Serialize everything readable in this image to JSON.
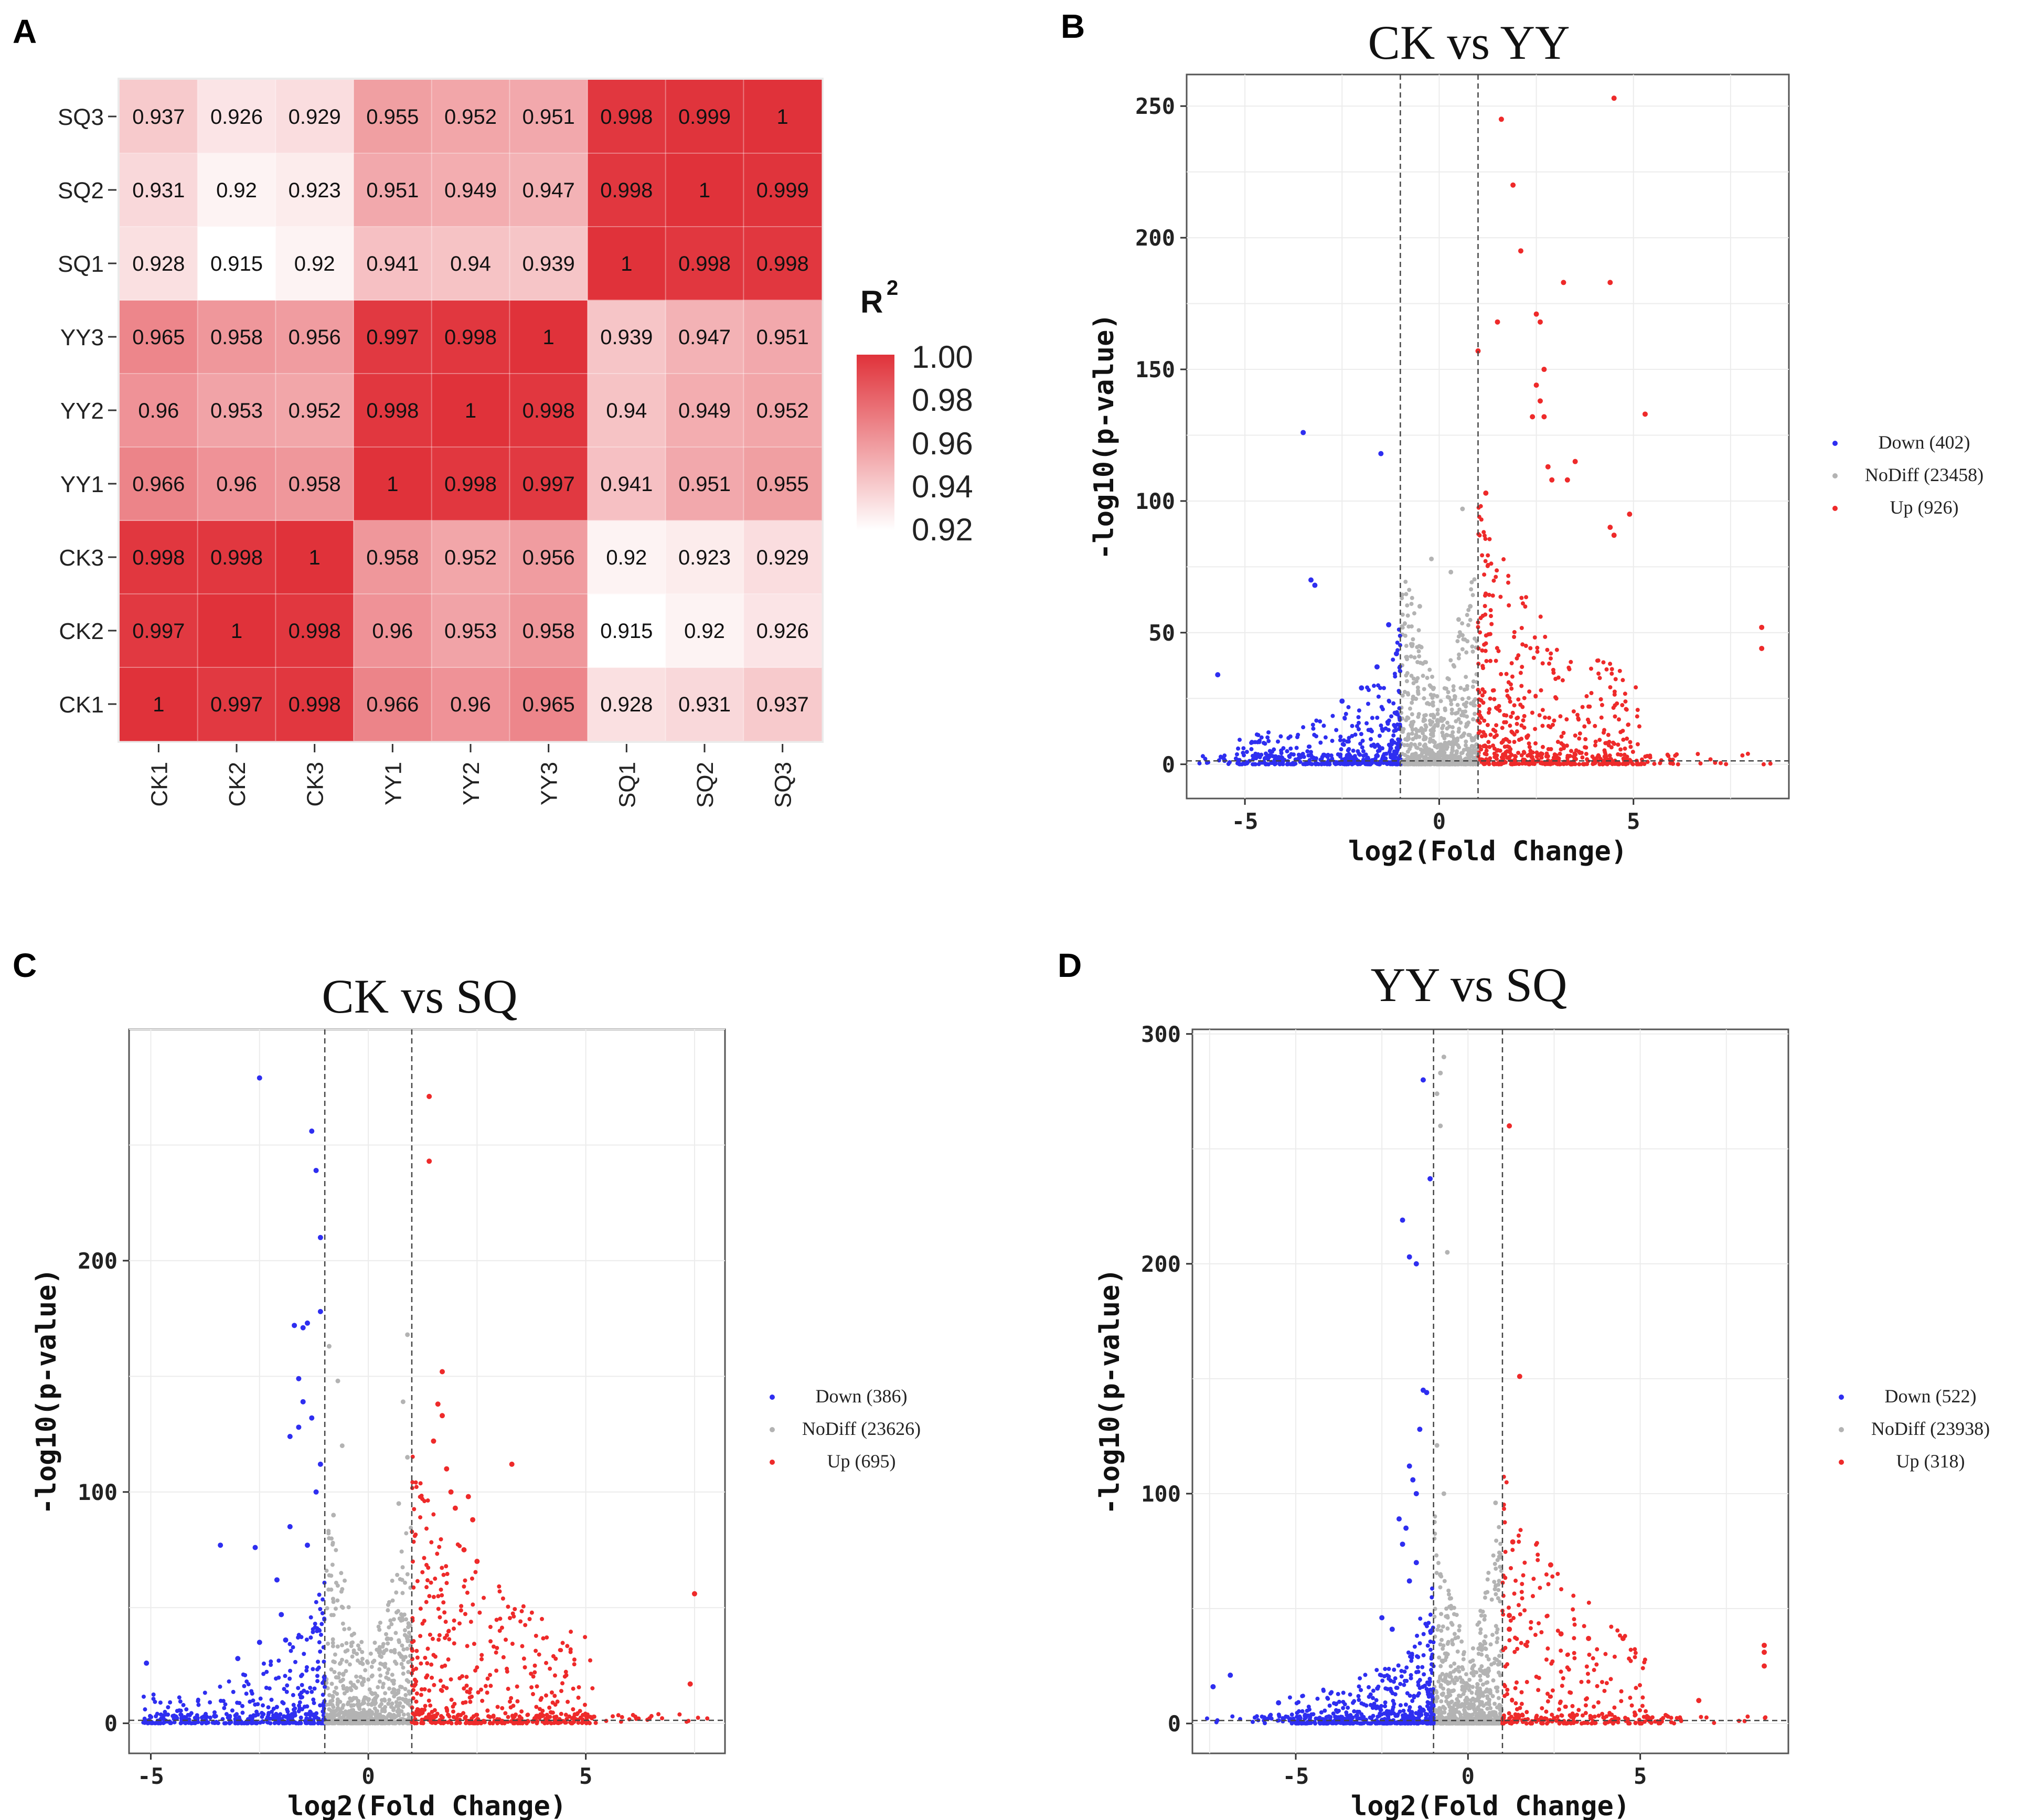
{
  "panels": [
    {
      "id": "A",
      "letter": "A"
    },
    {
      "id": "B",
      "letter": "B"
    },
    {
      "id": "C",
      "letter": "C"
    },
    {
      "id": "D",
      "letter": "D"
    }
  ],
  "chart_data": [
    {
      "panel": "A",
      "type": "heatmap",
      "title": "",
      "rows": [
        "CK1",
        "CK2",
        "CK3",
        "YY1",
        "YY2",
        "YY3",
        "SQ1",
        "SQ2",
        "SQ3"
      ],
      "columns": [
        "CK1",
        "CK2",
        "CK3",
        "YY1",
        "YY2",
        "YY3",
        "SQ1",
        "SQ2",
        "SQ3"
      ],
      "values": [
        [
          "1",
          "0.997",
          "0.998",
          "0.966",
          "0.96",
          "0.965",
          "0.928",
          "0.931",
          "0.937"
        ],
        [
          "0.997",
          "1",
          "0.998",
          "0.96",
          "0.953",
          "0.958",
          "0.915",
          "0.92",
          "0.926"
        ],
        [
          "0.998",
          "0.998",
          "1",
          "0.958",
          "0.952",
          "0.956",
          "0.92",
          "0.923",
          "0.929"
        ],
        [
          "0.966",
          "0.96",
          "0.958",
          "1",
          "0.998",
          "0.997",
          "0.941",
          "0.951",
          "0.955"
        ],
        [
          "0.96",
          "0.953",
          "0.952",
          "0.998",
          "1",
          "0.998",
          "0.94",
          "0.949",
          "0.952"
        ],
        [
          "0.965",
          "0.958",
          "0.956",
          "0.997",
          "0.998",
          "1",
          "0.939",
          "0.947",
          "0.951"
        ],
        [
          "0.928",
          "0.915",
          "0.92",
          "0.941",
          "0.94",
          "0.939",
          "1",
          "0.998",
          "0.998"
        ],
        [
          "0.931",
          "0.92",
          "0.923",
          "0.951",
          "0.949",
          "0.947",
          "0.998",
          "1",
          "0.999"
        ],
        [
          "0.937",
          "0.926",
          "0.929",
          "0.955",
          "0.952",
          "0.951",
          "0.998",
          "0.999",
          "1"
        ]
      ],
      "colorbar": {
        "title": "R",
        "title_superscript": "2",
        "ticks": [
          "1.00",
          "0.98",
          "0.96",
          "0.94",
          "0.92"
        ],
        "range": [
          0.915,
          1.0
        ],
        "low_color": "#ffffff",
        "high_color": "#e0323a"
      }
    },
    {
      "panel": "B",
      "type": "scatter",
      "subtype": "volcano",
      "title": "CK vs YY",
      "xlabel": "log2(Fold Change)",
      "ylabel": "-log10(p-value)",
      "xlim": [
        -6.5,
        9
      ],
      "ylim": [
        -13,
        262
      ],
      "xticks": [
        "-5",
        "0",
        "5"
      ],
      "yticks": [
        "0",
        "50",
        "100",
        "150",
        "200",
        "250"
      ],
      "xtick_values": [
        -5,
        0,
        5
      ],
      "ytick_values": [
        0,
        50,
        100,
        150,
        200,
        250
      ],
      "fc_cutoff": 1,
      "legend": [
        {
          "label": "Down (402)",
          "color": "#2e2ef0"
        },
        {
          "label": "NoDiff (23458)",
          "color": "#b3b3b3"
        },
        {
          "label": "Up (926)",
          "color": "#ee2a2a"
        }
      ],
      "highlight_points": {
        "down": [
          [
            -5.7,
            34
          ],
          [
            -3.5,
            126
          ],
          [
            -3.3,
            70
          ],
          [
            -3.2,
            68
          ],
          [
            -1.5,
            118
          ],
          [
            -1.3,
            53
          ],
          [
            -1.1,
            42
          ],
          [
            -1.6,
            37
          ],
          [
            -2.0,
            29
          ],
          [
            -2.5,
            24
          ]
        ],
        "up": [
          [
            1.6,
            245
          ],
          [
            4.5,
            253
          ],
          [
            1.9,
            220
          ],
          [
            2.1,
            195
          ],
          [
            4.4,
            183
          ],
          [
            3.2,
            183
          ],
          [
            2.5,
            171
          ],
          [
            2.6,
            168
          ],
          [
            1.5,
            168
          ],
          [
            2.7,
            150
          ],
          [
            2.5,
            144
          ],
          [
            2.6,
            138
          ],
          [
            5.3,
            133
          ],
          [
            2.4,
            132
          ],
          [
            2.7,
            132
          ],
          [
            1.0,
            157
          ],
          [
            3.5,
            115
          ],
          [
            2.8,
            113
          ],
          [
            2.9,
            108
          ],
          [
            3.3,
            108
          ],
          [
            4.9,
            95
          ],
          [
            4.4,
            90
          ],
          [
            4.5,
            87
          ],
          [
            1.2,
            103
          ],
          [
            8.3,
            52
          ],
          [
            8.3,
            44
          ]
        ],
        "nodiff": [
          [
            -0.2,
            78
          ],
          [
            0.6,
            97
          ],
          [
            0.3,
            73
          ],
          [
            -0.5,
            60
          ],
          [
            0.8,
            60
          ],
          [
            -0.7,
            45
          ],
          [
            0.5,
            55
          ]
        ]
      },
      "bulk_seed": {
        "down": 402,
        "nodiff": 700,
        "up": 520
      }
    },
    {
      "panel": "C",
      "type": "scatter",
      "subtype": "volcano",
      "title": "CK vs SQ",
      "xlabel": "log2(Fold Change)",
      "ylabel": "-log10(p-value)",
      "xlim": [
        -5.5,
        8.2
      ],
      "ylim": [
        -13,
        300
      ],
      "xticks": [
        "-5",
        "0",
        "5"
      ],
      "yticks": [
        "0",
        "100",
        "200"
      ],
      "xtick_values": [
        -5,
        0,
        5
      ],
      "ytick_values": [
        0,
        100,
        200
      ],
      "fc_cutoff": 1,
      "legend": [
        {
          "label": "Down (386)",
          "color": "#2e2ef0"
        },
        {
          "label": "NoDiff (23626)",
          "color": "#b3b3b3"
        },
        {
          "label": "Up (695)",
          "color": "#ee2a2a"
        }
      ],
      "highlight_points": {
        "down": [
          [
            -2.5,
            279
          ],
          [
            -1.3,
            256
          ],
          [
            -1.2,
            239
          ],
          [
            -1.1,
            210
          ],
          [
            -1.1,
            178
          ],
          [
            -1.7,
            172
          ],
          [
            -1.5,
            171
          ],
          [
            -1.4,
            173
          ],
          [
            -1.6,
            149
          ],
          [
            -1.5,
            139
          ],
          [
            -1.3,
            132
          ],
          [
            -1.6,
            128
          ],
          [
            -1.8,
            124
          ],
          [
            -1.1,
            112
          ],
          [
            -1.2,
            100
          ],
          [
            -1.8,
            85
          ],
          [
            -3.4,
            77
          ],
          [
            -2.6,
            76
          ],
          [
            -1.4,
            77
          ],
          [
            -2.1,
            62
          ],
          [
            -2.0,
            47
          ],
          [
            -5.1,
            26
          ],
          [
            -1.9,
            36
          ],
          [
            -2.5,
            35
          ],
          [
            -3.0,
            28
          ]
        ],
        "up": [
          [
            1.4,
            271
          ],
          [
            1.4,
            243
          ],
          [
            1.7,
            152
          ],
          [
            1.6,
            138
          ],
          [
            1.7,
            133
          ],
          [
            3.3,
            112
          ],
          [
            1.9,
            100
          ],
          [
            2.3,
            98
          ],
          [
            2.0,
            93
          ],
          [
            2.2,
            75
          ],
          [
            2.4,
            88
          ],
          [
            2.5,
            70
          ],
          [
            7.5,
            56
          ],
          [
            7.4,
            17
          ],
          [
            1.5,
            122
          ],
          [
            1.8,
            110
          ]
        ],
        "nodiff": [
          [
            -0.9,
            163
          ],
          [
            0.9,
            168
          ],
          [
            -0.7,
            148
          ],
          [
            0.8,
            139
          ],
          [
            -0.6,
            120
          ],
          [
            0.7,
            95
          ],
          [
            0.9,
            115
          ],
          [
            -0.8,
            90
          ]
        ]
      },
      "bulk_seed": {
        "down": 360,
        "nodiff": 700,
        "up": 420
      }
    },
    {
      "panel": "D",
      "type": "scatter",
      "subtype": "volcano",
      "title": "YY vs SQ",
      "xlabel": "log2(Fold Change)",
      "ylabel": "-log10(p-value)",
      "xlim": [
        -8,
        9.3
      ],
      "ylim": [
        -13,
        302
      ],
      "xticks": [
        "-5",
        "0",
        "5"
      ],
      "yticks": [
        "0",
        "100",
        "200",
        "300"
      ],
      "xtick_values": [
        -5,
        0,
        5
      ],
      "ytick_values": [
        0,
        100,
        200,
        300
      ],
      "fc_cutoff": 1,
      "legend": [
        {
          "label": "Down (522)",
          "color": "#2e2ef0"
        },
        {
          "label": "NoDiff (23938)",
          "color": "#b3b3b3"
        },
        {
          "label": "Up (318)",
          "color": "#ee2a2a"
        }
      ],
      "highlight_points": {
        "down": [
          [
            -1.3,
            280
          ],
          [
            -1.1,
            237
          ],
          [
            -1.9,
            219
          ],
          [
            -1.7,
            203
          ],
          [
            -1.5,
            200
          ],
          [
            -1.3,
            145
          ],
          [
            -1.2,
            144
          ],
          [
            -1.4,
            128
          ],
          [
            -1.7,
            112
          ],
          [
            -1.6,
            106
          ],
          [
            -1.5,
            100
          ],
          [
            -2.0,
            89
          ],
          [
            -1.8,
            85
          ],
          [
            -1.9,
            78
          ],
          [
            -1.5,
            70
          ],
          [
            -1.7,
            62
          ],
          [
            -2.5,
            46
          ],
          [
            -2.2,
            41
          ],
          [
            -6.9,
            21
          ],
          [
            -7.4,
            16
          ],
          [
            -5.5,
            9
          ]
        ],
        "up": [
          [
            1.2,
            260
          ],
          [
            1.5,
            151
          ],
          [
            1.3,
            79
          ],
          [
            2.4,
            69
          ],
          [
            1.2,
            47
          ],
          [
            1.2,
            41
          ],
          [
            4.5,
            37
          ],
          [
            3.5,
            37
          ],
          [
            8.6,
            34
          ],
          [
            8.6,
            31
          ],
          [
            8.6,
            25
          ],
          [
            2.7,
            39
          ],
          [
            6.7,
            10
          ]
        ],
        "nodiff": [
          [
            -0.7,
            290
          ],
          [
            -0.8,
            283
          ],
          [
            -0.9,
            274
          ],
          [
            -0.8,
            260
          ],
          [
            -0.6,
            205
          ],
          [
            -0.7,
            100
          ],
          [
            0.8,
            96
          ],
          [
            -0.9,
            121
          ]
        ]
      },
      "bulk_seed": {
        "down": 480,
        "nodiff": 700,
        "up": 260
      }
    }
  ]
}
